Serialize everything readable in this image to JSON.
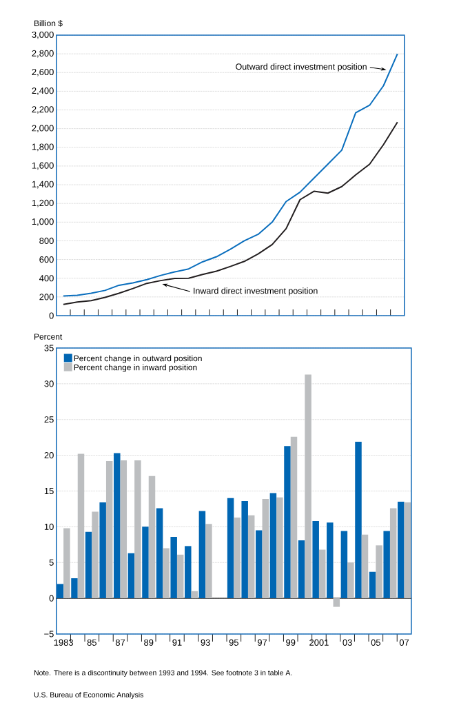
{
  "chart_data": [
    {
      "type": "line",
      "ylabel": "Billion $",
      "categories": [
        null,
        null,
        null,
        null,
        null,
        null,
        null,
        null,
        null,
        null,
        null,
        null,
        null,
        null,
        null,
        null,
        null,
        null,
        null,
        null,
        null,
        null,
        null,
        null,
        null
      ],
      "series": [
        {
          "name": "Outward direct investment position",
          "color": "#0a6ebd",
          "values": [
            210,
            218,
            240,
            270,
            325,
            350,
            385,
            430,
            468,
            500,
            575,
            630,
            710,
            800,
            870,
            1000,
            1220,
            1320,
            1470,
            1620,
            1770,
            2170,
            2250,
            2460,
            2800
          ]
        },
        {
          "name": "Inward direct investment position",
          "color": "#231f20",
          "values": [
            120,
            145,
            160,
            195,
            240,
            290,
            345,
            375,
            398,
            400,
            440,
            475,
            526,
            580,
            660,
            760,
            930,
            1240,
            1330,
            1310,
            1380,
            1505,
            1620,
            1830,
            2070
          ]
        }
      ],
      "ylim": [
        0,
        3000
      ],
      "yticks": [
        0,
        200,
        400,
        600,
        800,
        {
          "value": 1000,
          "label": "1,000"
        },
        {
          "value": 1200,
          "label": "1,200"
        },
        {
          "value": 1400,
          "label": "1,400"
        },
        {
          "value": 1600,
          "label": "1,600"
        },
        {
          "value": 1800,
          "label": "1,800"
        },
        {
          "value": 2000,
          "label": "2,000"
        },
        {
          "value": 2200,
          "label": "2,200"
        },
        {
          "value": 2400,
          "label": "2,400"
        },
        {
          "value": 2600,
          "label": "2,600"
        },
        {
          "value": 2800,
          "label": "2,800"
        },
        {
          "value": 3000,
          "label": "3,000"
        }
      ],
      "grid": "y",
      "tick_labels": "y"
    },
    {
      "type": "bar",
      "ylabel": "Percent",
      "categories": [
        "1983",
        null,
        "85",
        null,
        "87",
        null,
        "89",
        null,
        "91",
        null,
        "93",
        null,
        "95",
        null,
        "97",
        null,
        "99",
        null,
        "2001",
        null,
        "03",
        null,
        "05",
        null,
        "07"
      ],
      "series": [
        {
          "name": "Percent change in outward position",
          "color": "#0066b3",
          "values": [
            2.0,
            2.8,
            9.3,
            13.4,
            20.3,
            6.3,
            10.0,
            12.6,
            8.6,
            7.3,
            12.2,
            null,
            14.0,
            13.6,
            9.5,
            14.7,
            21.3,
            8.1,
            10.8,
            10.6,
            9.4,
            21.9,
            3.7,
            9.4,
            13.5
          ]
        },
        {
          "name": "Percent change in inward position",
          "color": "#bcbec0",
          "values": [
            9.8,
            20.2,
            12.1,
            19.2,
            19.3,
            19.3,
            17.1,
            7.0,
            6.1,
            1.0,
            10.4,
            null,
            11.3,
            11.6,
            13.9,
            14.1,
            22.6,
            31.3,
            6.8,
            -1.2,
            5.0,
            8.9,
            7.4,
            12.6,
            13.4
          ]
        }
      ],
      "ylim": [
        -5,
        35
      ],
      "yticks": [
        {
          "value": -5,
          "label": "−5"
        },
        0,
        5,
        10,
        15,
        20,
        25,
        30,
        35
      ],
      "grid": "y",
      "legend": "top left",
      "annotations": [
        "Note. There is a discontinuity between 1993 and 1994. See footnote 3 in table A.",
        "U.S. Bureau of Economic Analysis"
      ]
    }
  ]
}
